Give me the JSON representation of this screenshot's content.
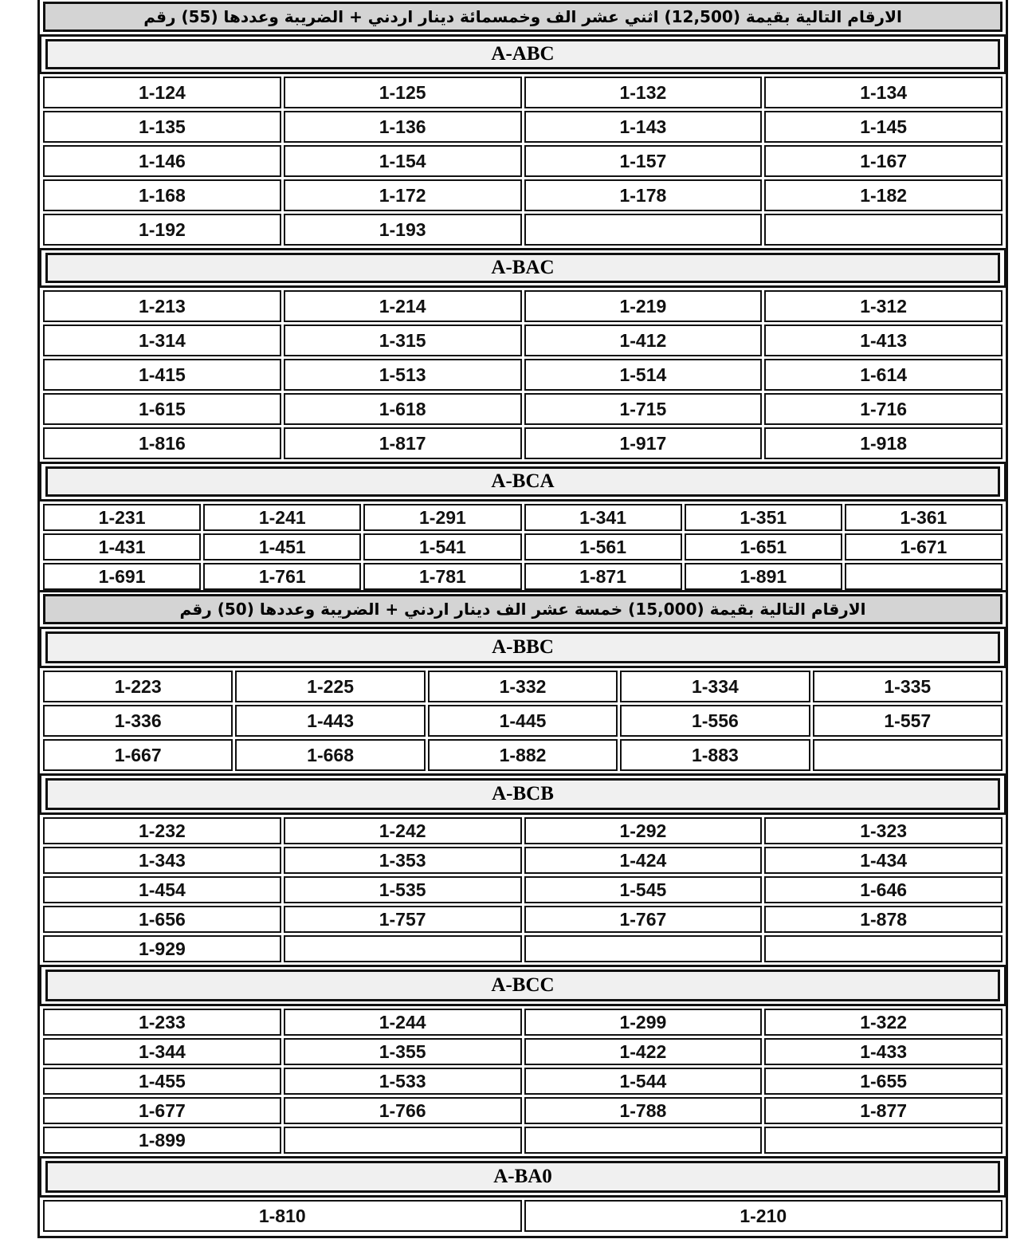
{
  "sections": [
    {
      "title": "الارقام التالية بقيمة (12,500) اثني عشر الف وخمسمائة دينار اردني + الضريبة وعددها (55) رقم",
      "groups": [
        {
          "code": "A-ABC",
          "columns": 4,
          "rows": [
            [
              "1-124",
              "1-125",
              "1-132",
              "1-134"
            ],
            [
              "1-135",
              "1-136",
              "1-143",
              "1-145"
            ],
            [
              "1-146",
              "1-154",
              "1-157",
              "1-167"
            ],
            [
              "1-168",
              "1-172",
              "1-178",
              "1-182"
            ],
            [
              "1-192",
              "1-193",
              "",
              ""
            ]
          ]
        },
        {
          "code": "A-BAC",
          "columns": 4,
          "rows": [
            [
              "1-213",
              "1-214",
              "1-219",
              "1-312"
            ],
            [
              "1-314",
              "1-315",
              "1-412",
              "1-413"
            ],
            [
              "1-415",
              "1-513",
              "1-514",
              "1-614"
            ],
            [
              "1-615",
              "1-618",
              "1-715",
              "1-716"
            ],
            [
              "1-816",
              "1-817",
              "1-917",
              "1-918"
            ]
          ]
        },
        {
          "code": "A-BCA",
          "columns": 6,
          "rows": [
            [
              "1-231",
              "1-241",
              "1-291",
              "1-341",
              "1-351",
              "1-361"
            ],
            [
              "1-431",
              "1-451",
              "1-541",
              "1-561",
              "1-651",
              "1-671"
            ],
            [
              "1-691",
              "1-761",
              "1-781",
              "1-871",
              "1-891",
              ""
            ]
          ]
        }
      ]
    },
    {
      "title": "الارقام التالية بقيمة (15,000) خمسة عشر الف دينار اردني + الضريبة وعددها (50) رقم",
      "groups": [
        {
          "code": "A-BBC",
          "columns": 5,
          "rows": [
            [
              "1-223",
              "1-225",
              "1-332",
              "1-334",
              "1-335"
            ],
            [
              "1-336",
              "1-443",
              "1-445",
              "1-556",
              "1-557"
            ],
            [
              "1-667",
              "1-668",
              "1-882",
              "1-883",
              ""
            ]
          ]
        },
        {
          "code": "A-BCB",
          "columns": 4,
          "rows": [
            [
              "1-232",
              "1-242",
              "1-292",
              "1-323"
            ],
            [
              "1-343",
              "1-353",
              "1-424",
              "1-434"
            ],
            [
              "1-454",
              "1-535",
              "1-545",
              "1-646"
            ],
            [
              "1-656",
              "1-757",
              "1-767",
              "1-878"
            ],
            [
              "1-929",
              "",
              "",
              ""
            ]
          ]
        },
        {
          "code": "A-BCC",
          "columns": 4,
          "rows": [
            [
              "1-233",
              "1-244",
              "1-299",
              "1-322"
            ],
            [
              "1-344",
              "1-355",
              "1-422",
              "1-433"
            ],
            [
              "1-455",
              "1-533",
              "1-544",
              "1-655"
            ],
            [
              "1-677",
              "1-766",
              "1-788",
              "1-877"
            ],
            [
              "1-899",
              "",
              "",
              ""
            ]
          ]
        },
        {
          "code": "A-BA0",
          "columns": 2,
          "rows": [
            [
              "1-810",
              "1-210"
            ]
          ]
        }
      ]
    }
  ]
}
